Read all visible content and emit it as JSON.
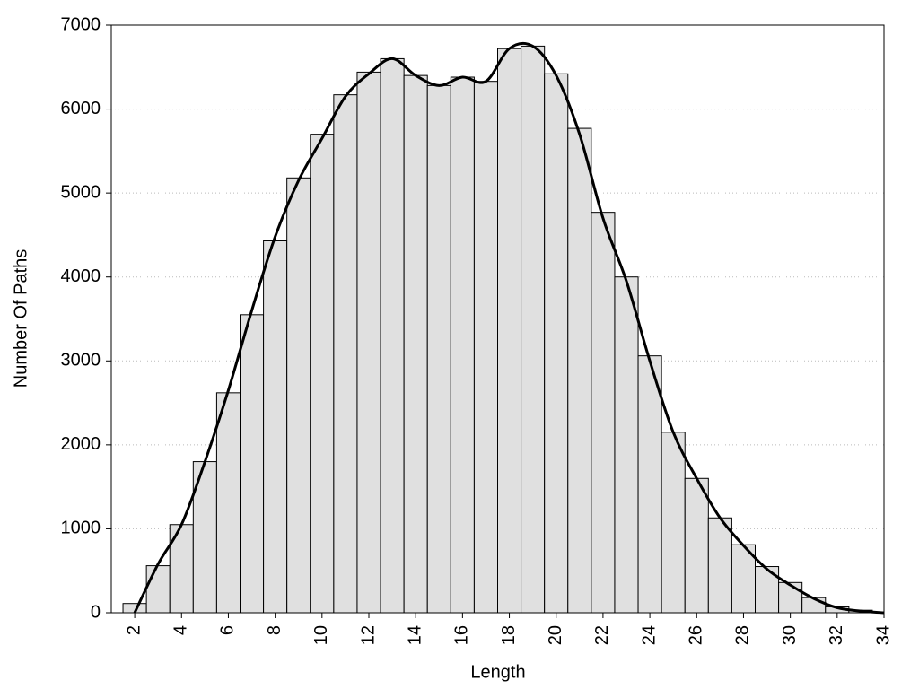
{
  "chart_data": {
    "type": "histogram",
    "x_label": "Length",
    "y_label": "Number Of Paths",
    "bins": [
      1.5,
      2.5,
      3.5,
      4.5,
      5.5,
      6.5,
      7.5,
      8.5,
      9.5,
      10.5,
      11.5,
      12.5,
      13.5,
      14.5,
      15.5,
      16.5,
      17.5,
      18.5,
      19.5,
      20.5,
      21.5,
      22.5,
      23.5,
      24.5,
      25.5,
      26.5,
      27.5,
      28.5,
      29.5,
      30.5,
      31.5,
      32.5,
      33.5
    ],
    "values": [
      110,
      560,
      1050,
      1800,
      2620,
      3550,
      4430,
      5180,
      5700,
      6170,
      6440,
      6600,
      6400,
      6280,
      6380,
      6330,
      6720,
      6750,
      6420,
      5770,
      4770,
      4000,
      3060,
      2150,
      1600,
      1130,
      810,
      550,
      360,
      180,
      70,
      30
    ],
    "color": "#e0e0e0",
    "line": {
      "color": "#000000",
      "x": [
        2,
        3,
        4,
        5,
        6,
        7,
        8,
        9,
        10,
        11,
        12,
        13,
        14,
        15,
        16,
        17,
        18,
        19,
        20,
        21,
        22,
        23,
        24,
        25,
        26,
        27,
        28,
        29,
        30,
        31,
        32,
        33,
        34
      ],
      "values": [
        0,
        580,
        1050,
        1800,
        2650,
        3600,
        4480,
        5150,
        5650,
        6150,
        6420,
        6600,
        6400,
        6280,
        6380,
        6330,
        6720,
        6750,
        6400,
        5700,
        4700,
        3950,
        3000,
        2150,
        1600,
        1130,
        800,
        520,
        330,
        170,
        60,
        20,
        0
      ]
    },
    "xlim": [
      1,
      34
    ],
    "ylim": [
      0,
      7000
    ],
    "xticks": [
      2,
      4,
      6,
      8,
      10,
      12,
      14,
      16,
      18,
      20,
      22,
      24,
      26,
      28,
      30,
      32,
      34
    ],
    "yticks": [
      0,
      1000,
      2000,
      3000,
      4000,
      5000,
      6000,
      7000
    ],
    "grid": true
  }
}
